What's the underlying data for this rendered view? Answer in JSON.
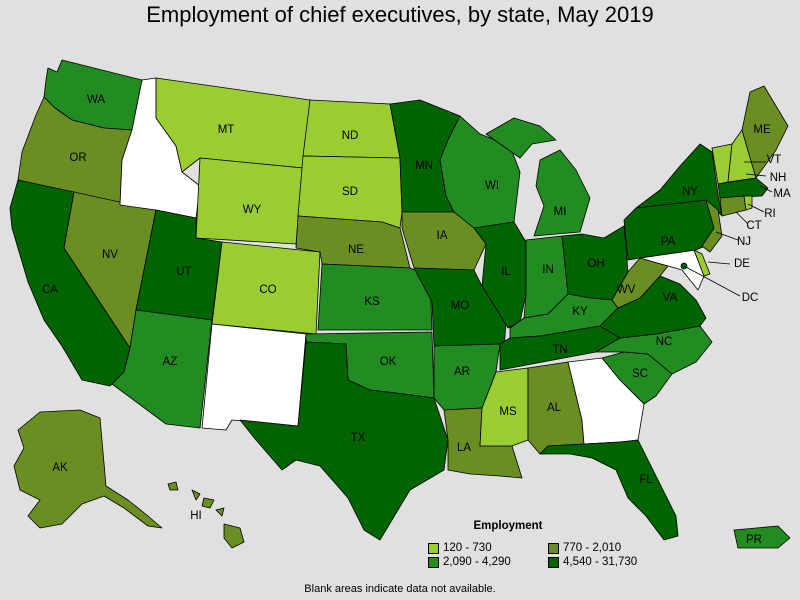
{
  "title": "Employment of chief executives, by state, May 2019",
  "legend": {
    "title": "Employment",
    "items": [
      {
        "label": "120 - 730",
        "color": "#9acd32"
      },
      {
        "label": "770 - 2,010",
        "color": "#6b8e23"
      },
      {
        "label": "2,090 - 4,290",
        "color": "#228b22"
      },
      {
        "label": "4,540 - 31,730",
        "color": "#006400"
      }
    ]
  },
  "footnote": "Blank areas indicate data not available.",
  "colors": {
    "c1": "#9acd32",
    "c2": "#6b8e23",
    "c3": "#228b22",
    "c4": "#006400",
    "na": "#ffffff"
  },
  "states": [
    {
      "code": "WA",
      "cls": "c3"
    },
    {
      "code": "OR",
      "cls": "c2"
    },
    {
      "code": "CA",
      "cls": "c4"
    },
    {
      "code": "NV",
      "cls": "c2"
    },
    {
      "code": "ID",
      "cls": "na"
    },
    {
      "code": "MT",
      "cls": "c1"
    },
    {
      "code": "WY",
      "cls": "c1"
    },
    {
      "code": "UT",
      "cls": "c4"
    },
    {
      "code": "AZ",
      "cls": "c3"
    },
    {
      "code": "CO",
      "cls": "c1"
    },
    {
      "code": "NM",
      "cls": "na"
    },
    {
      "code": "ND",
      "cls": "c1"
    },
    {
      "code": "SD",
      "cls": "c1"
    },
    {
      "code": "NE",
      "cls": "c2"
    },
    {
      "code": "KS",
      "cls": "c3"
    },
    {
      "code": "OK",
      "cls": "c3"
    },
    {
      "code": "TX",
      "cls": "c4"
    },
    {
      "code": "MN",
      "cls": "c4"
    },
    {
      "code": "IA",
      "cls": "c2"
    },
    {
      "code": "MO",
      "cls": "c4"
    },
    {
      "code": "AR",
      "cls": "c3"
    },
    {
      "code": "LA",
      "cls": "c2"
    },
    {
      "code": "WI",
      "cls": "c3"
    },
    {
      "code": "IL",
      "cls": "c4"
    },
    {
      "code": "MI",
      "cls": "c3"
    },
    {
      "code": "IN",
      "cls": "c3"
    },
    {
      "code": "OH",
      "cls": "c4"
    },
    {
      "code": "KY",
      "cls": "c3"
    },
    {
      "code": "TN",
      "cls": "c4"
    },
    {
      "code": "MS",
      "cls": "c1"
    },
    {
      "code": "AL",
      "cls": "c2"
    },
    {
      "code": "GA",
      "cls": "na"
    },
    {
      "code": "FL",
      "cls": "c4"
    },
    {
      "code": "SC",
      "cls": "c3"
    },
    {
      "code": "NC",
      "cls": "c3"
    },
    {
      "code": "VA",
      "cls": "c4"
    },
    {
      "code": "WV",
      "cls": "c2"
    },
    {
      "code": "PA",
      "cls": "c4"
    },
    {
      "code": "NY",
      "cls": "c4"
    },
    {
      "code": "VT",
      "cls": "c1"
    },
    {
      "code": "NH",
      "cls": "c1"
    },
    {
      "code": "ME",
      "cls": "c2"
    },
    {
      "code": "MA",
      "cls": "c4"
    },
    {
      "code": "RI",
      "cls": "c1"
    },
    {
      "code": "CT",
      "cls": "c2"
    },
    {
      "code": "NJ",
      "cls": "c2"
    },
    {
      "code": "DE",
      "cls": "c1"
    },
    {
      "code": "MD",
      "cls": "na"
    },
    {
      "code": "DC",
      "cls": "c4"
    },
    {
      "code": "AK",
      "cls": "c2"
    },
    {
      "code": "HI",
      "cls": "c2"
    },
    {
      "code": "PR",
      "cls": "c3"
    }
  ]
}
